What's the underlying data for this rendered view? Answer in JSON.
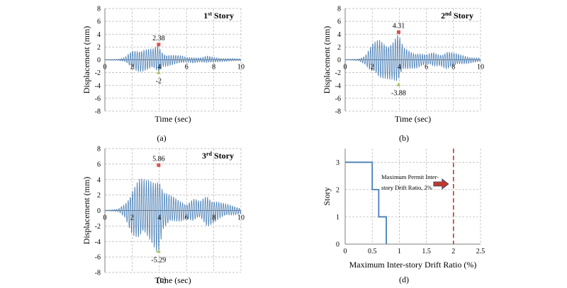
{
  "chart_data": [
    {
      "type": "line",
      "panel_label": "(a)",
      "title": "1st Story",
      "title_main": "1",
      "title_sup": "st",
      "title_rest": " Story",
      "xlabel": "Time (sec)",
      "ylabel": "Displacement (mm)",
      "xlim": [
        0,
        10
      ],
      "ylim": [
        -8,
        8
      ],
      "xticks": [
        "0",
        "2",
        "4",
        "6",
        "8",
        "10"
      ],
      "yticks": [
        "8",
        "6",
        "4",
        "2",
        "0",
        "-2",
        "-4",
        "-6",
        "-8"
      ],
      "grid": true,
      "series": [
        {
          "envelope": [
            [
              0,
              0.05
            ],
            [
              0.5,
              0.08
            ],
            [
              1,
              0.1
            ],
            [
              1.5,
              0.4
            ],
            [
              2,
              1.5
            ],
            [
              2.5,
              1.9
            ],
            [
              3,
              1.8
            ],
            [
              3.5,
              1.7
            ],
            [
              3.9,
              2.3
            ],
            [
              4.3,
              1.1
            ],
            [
              4.8,
              0.9
            ],
            [
              5.3,
              0.7
            ],
            [
              5.7,
              0.6
            ],
            [
              6,
              0.4
            ],
            [
              6.5,
              0.5
            ],
            [
              7,
              0.35
            ],
            [
              7.5,
              0.6
            ],
            [
              8,
              0.4
            ],
            [
              8.5,
              0.3
            ],
            [
              9,
              0.25
            ],
            [
              9.5,
              0.2
            ],
            [
              10,
              0.15
            ]
          ],
          "cycles_per_sec": 6
        }
      ],
      "max_point": {
        "x": 3.95,
        "y": 2.38,
        "label": "2.38"
      },
      "min_point": {
        "x": 3.95,
        "y": -2,
        "label": "-2"
      }
    },
    {
      "type": "line",
      "panel_label": "(b)",
      "title": "2nd Story",
      "title_main": "2",
      "title_sup": "nd",
      "title_rest": " Story",
      "xlabel": "Time (sec)",
      "ylabel": "Displacement (mm)",
      "xlim": [
        0,
        10
      ],
      "ylim": [
        -8,
        8
      ],
      "xticks": [
        "0",
        "2",
        "4",
        "6",
        "8",
        "10"
      ],
      "yticks": [
        "8",
        "6",
        "4",
        "2",
        "0",
        "-2",
        "-4",
        "-6",
        "-8"
      ],
      "grid": true,
      "series": [
        {
          "envelope": [
            [
              0,
              0.05
            ],
            [
              0.5,
              0.08
            ],
            [
              1,
              0.15
            ],
            [
              1.5,
              0.8
            ],
            [
              2,
              2.5
            ],
            [
              2.5,
              3.3
            ],
            [
              3,
              3.0
            ],
            [
              3.5,
              3.2
            ],
            [
              3.9,
              4.2
            ],
            [
              4.3,
              2.0
            ],
            [
              4.8,
              1.5
            ],
            [
              5.3,
              1.3
            ],
            [
              5.7,
              1.0
            ],
            [
              6,
              0.8
            ],
            [
              6.5,
              1.2
            ],
            [
              7,
              0.9
            ],
            [
              7.5,
              1.5
            ],
            [
              8,
              1.1
            ],
            [
              8.5,
              0.8
            ],
            [
              9,
              0.6
            ],
            [
              9.5,
              0.4
            ],
            [
              10,
              0.3
            ]
          ],
          "cycles_per_sec": 6
        }
      ],
      "max_point": {
        "x": 3.95,
        "y": 4.31,
        "label": "4.31"
      },
      "min_point": {
        "x": 3.95,
        "y": -3.88,
        "label": "-3.88"
      }
    },
    {
      "type": "line",
      "panel_label": "(c)",
      "title": "3rd Story",
      "title_main": "3",
      "title_sup": "rd",
      "title_rest": " Story",
      "xlabel": "Time (sec)",
      "ylabel": "Displacement (mm)",
      "xlim": [
        0,
        10
      ],
      "ylim": [
        -8,
        8
      ],
      "xticks": [
        "0",
        "2",
        "4",
        "6",
        "8",
        "10"
      ],
      "yticks": [
        "8",
        "6",
        "4",
        "2",
        "0",
        "-2",
        "-4",
        "-6",
        "-8"
      ],
      "grid": true,
      "series": [
        {
          "envelope": [
            [
              0,
              0.05
            ],
            [
              0.5,
              0.1
            ],
            [
              1,
              0.2
            ],
            [
              1.5,
              1.0
            ],
            [
              2,
              3.2
            ],
            [
              2.5,
              4.3
            ],
            [
              3,
              4.0
            ],
            [
              3.5,
              4.5
            ],
            [
              3.9,
              5.7
            ],
            [
              4.3,
              2.6
            ],
            [
              4.8,
              2.0
            ],
            [
              5.3,
              1.6
            ],
            [
              5.7,
              1.4
            ],
            [
              6,
              1.0
            ],
            [
              6.5,
              1.6
            ],
            [
              7,
              1.2
            ],
            [
              7.5,
              2.2
            ],
            [
              8,
              1.6
            ],
            [
              8.5,
              1.1
            ],
            [
              9,
              0.8
            ],
            [
              9.5,
              0.6
            ],
            [
              10,
              0.4
            ]
          ],
          "cycles_per_sec": 6
        }
      ],
      "max_point": {
        "x": 3.95,
        "y": 5.86,
        "label": "5.86"
      },
      "min_point": {
        "x": 3.95,
        "y": -5.29,
        "label": "-5.29"
      }
    },
    {
      "type": "line",
      "panel_label": "(d)",
      "xlabel": "Maximum Inter-story Drift Ratio (%)",
      "ylabel": "Story",
      "xlim": [
        0,
        2.5
      ],
      "ylim": [
        0,
        3.5
      ],
      "xticks": [
        "0",
        "0.5",
        "1",
        "1.5",
        "2",
        "2.5"
      ],
      "yticks": [
        "3",
        "2",
        "1",
        "0"
      ],
      "grid": true,
      "series": [
        {
          "x": [
            0,
            0.5,
            0.5,
            0.62,
            0.62,
            0.76,
            0.76
          ],
          "y": [
            3,
            3,
            2,
            2,
            1,
            1,
            0
          ]
        }
      ],
      "limit_line": {
        "x": 2
      },
      "annotation_lines": [
        "Maximum Permit Inter-",
        "story Drift Ratio, 2%"
      ],
      "colors": {
        "series": "#4a7fb5",
        "limit": "#c0392b",
        "arrow": "#c0392b"
      }
    }
  ],
  "colors": {
    "series": "#4a7fb5",
    "grid": "#b5b5b5",
    "max_marker": "#d9534f",
    "min_marker": "#a5c35e"
  }
}
